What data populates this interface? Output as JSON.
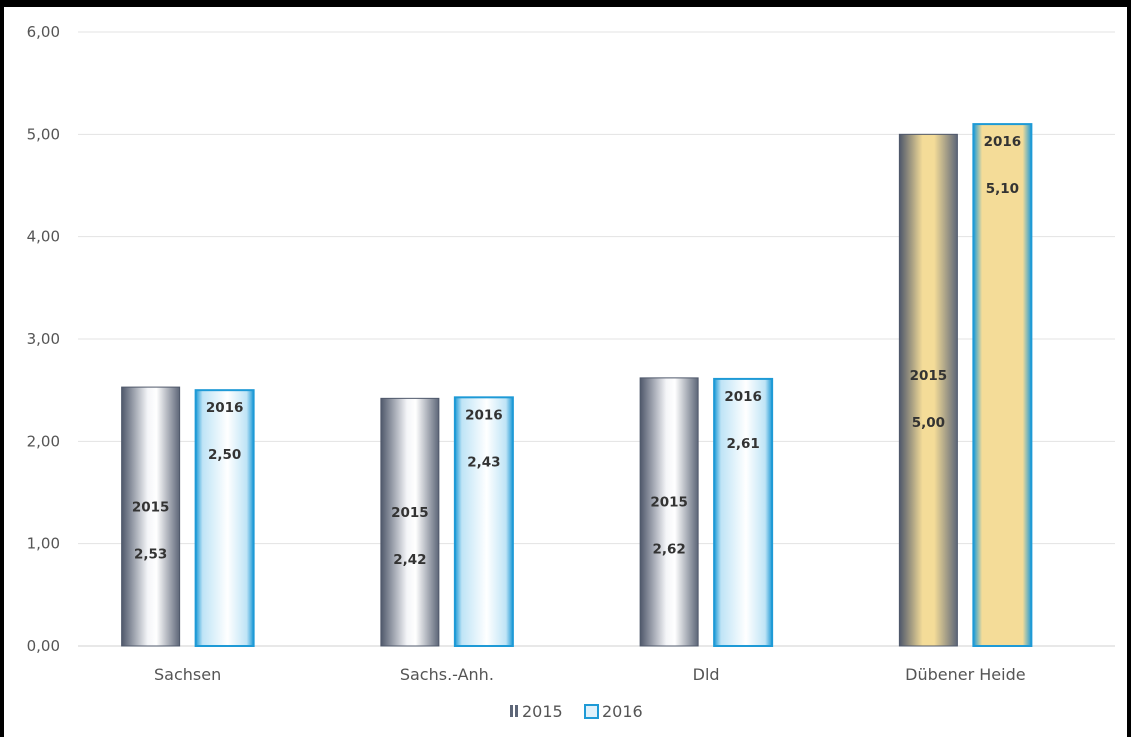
{
  "chart_data": {
    "type": "bar",
    "categories": [
      "Sachsen",
      "Sachs.-Anh.",
      "Dld",
      "Dübener Heide"
    ],
    "series": [
      {
        "name": "2015",
        "values": [
          2.53,
          2.42,
          2.62,
          5.0
        ],
        "labels": [
          "2,53",
          "2,42",
          "2,62",
          "5,00"
        ]
      },
      {
        "name": "2016",
        "values": [
          2.5,
          2.43,
          2.61,
          5.1
        ],
        "labels": [
          "2,50",
          "2,43",
          "2,61",
          "5,10"
        ]
      }
    ],
    "y_ticks": [
      "0,00",
      "1,00",
      "2,00",
      "3,00",
      "4,00",
      "5,00",
      "6,00"
    ],
    "ylim": [
      0,
      6
    ],
    "grid": true,
    "legend_position": "bottom-center",
    "colors": {
      "s2015_dark": "#5a6478",
      "s2015_light": "#ffffff",
      "s2016_edge": "#1e9ad6",
      "s2016_light": "#ffffff",
      "highlight_gold": "#f4dc98",
      "grid": "#e3e3e3"
    }
  }
}
